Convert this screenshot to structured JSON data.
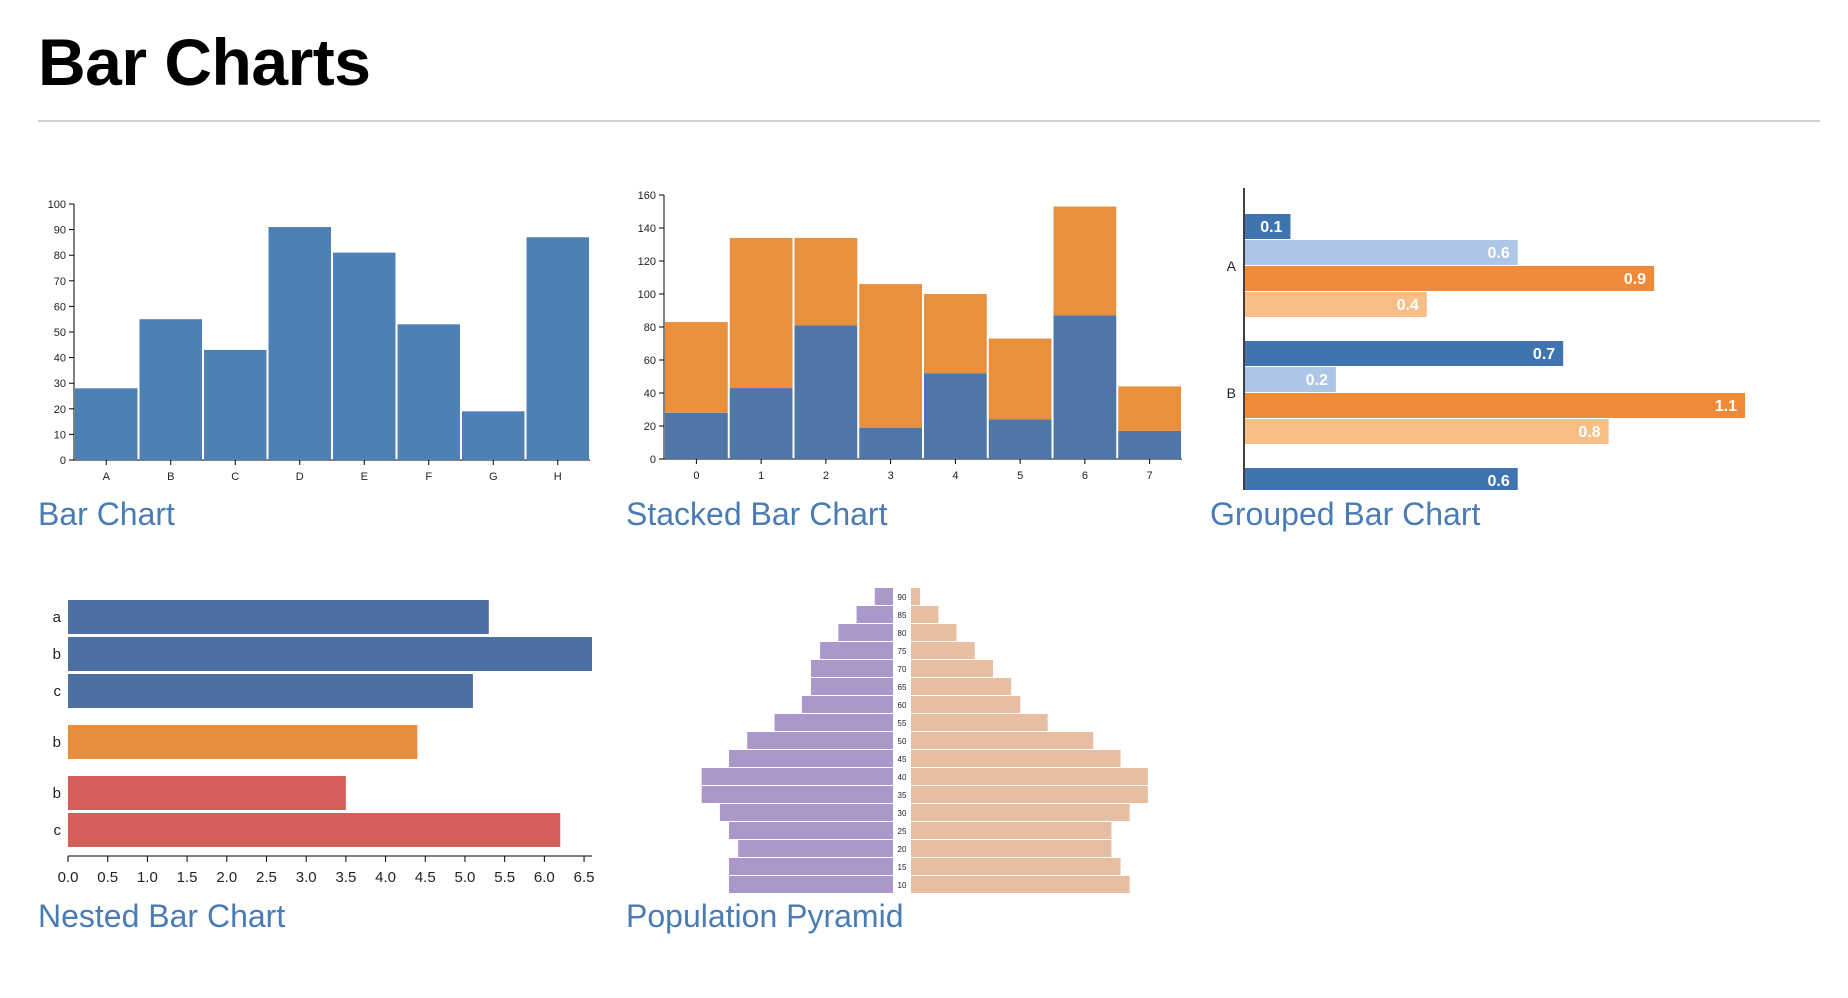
{
  "page": {
    "title": "Bar Charts"
  },
  "links": {
    "bar": "Bar Chart",
    "stacked": "Stacked Bar Chart",
    "grouped": "Grouped Bar Chart",
    "nested": "Nested Bar Chart",
    "pyramid": "Population Pyramid"
  },
  "colors": {
    "bar": "#4e7fb5",
    "stacked_bottom": "#4e77a8",
    "stacked_top": "#e8903c",
    "grouped": [
      "#3f74b0",
      "#adc6e8",
      "#ef8a38",
      "#f7bf86"
    ],
    "nested": [
      "#4e6fa2",
      "#e88d3c",
      "#d45e5a"
    ],
    "pyramid_left": "#ab98cb",
    "pyramid_right": "#e8bea3"
  },
  "chart_data": [
    {
      "id": "bar",
      "type": "bar",
      "categories": [
        "A",
        "B",
        "C",
        "D",
        "E",
        "F",
        "G",
        "H"
      ],
      "values": [
        28,
        55,
        43,
        91,
        81,
        53,
        19,
        87
      ],
      "ylim": [
        0,
        100
      ],
      "yticks": [
        0,
        10,
        20,
        30,
        40,
        50,
        60,
        70,
        80,
        90,
        100
      ]
    },
    {
      "id": "stacked",
      "type": "bar",
      "stacked": true,
      "categories": [
        "0",
        "1",
        "2",
        "3",
        "4",
        "5",
        "6",
        "7"
      ],
      "series": [
        {
          "values": [
            28,
            43,
            81,
            19,
            52,
            24,
            87,
            17
          ]
        },
        {
          "values": [
            55,
            91,
            53,
            87,
            48,
            49,
            66,
            27
          ]
        }
      ],
      "ylim": [
        0,
        160
      ],
      "yticks": [
        0,
        20,
        40,
        60,
        80,
        100,
        120,
        140,
        160
      ]
    },
    {
      "id": "grouped",
      "type": "bar",
      "orientation": "horizontal",
      "groups": [
        {
          "label": "A",
          "values": [
            "0.1",
            "0.6",
            "0.9",
            "0.4"
          ]
        },
        {
          "label": "B",
          "values": [
            "0.7",
            "0.2",
            "1.1",
            "0.8"
          ]
        },
        {
          "label": "",
          "values": [
            "0.6"
          ]
        }
      ],
      "xlim": [
        0,
        1.1
      ]
    },
    {
      "id": "nested",
      "type": "bar",
      "orientation": "horizontal",
      "groups": [
        {
          "bars": [
            {
              "label": "a",
              "value": 5.3
            },
            {
              "label": "b",
              "value": 6.6
            },
            {
              "label": "c",
              "value": 5.1
            }
          ]
        },
        {
          "bars": [
            {
              "label": "b",
              "value": 4.4
            }
          ]
        },
        {
          "bars": [
            {
              "label": "b",
              "value": 3.5
            },
            {
              "label": "c",
              "value": 6.2
            }
          ]
        }
      ],
      "xticks": [
        "0.0",
        "0.5",
        "1.0",
        "1.5",
        "2.0",
        "2.5",
        "3.0",
        "3.5",
        "4.0",
        "4.5",
        "5.0",
        "5.5",
        "6.0",
        "6.5"
      ],
      "xlim": [
        0,
        6.6
      ]
    },
    {
      "id": "pyramid",
      "type": "bar",
      "orientation": "horizontal",
      "age_labels": [
        "90",
        "85",
        "80",
        "75",
        "70",
        "65",
        "60",
        "55",
        "50",
        "45",
        "40",
        "35",
        "30",
        "25",
        "20",
        "15",
        "10"
      ],
      "left_values": [
        2,
        4,
        6,
        8,
        9,
        9,
        10,
        13,
        16,
        18,
        21,
        21,
        19,
        18,
        17,
        18,
        18
      ],
      "right_values": [
        1,
        3,
        5,
        7,
        9,
        11,
        12,
        15,
        20,
        23,
        26,
        26,
        24,
        22,
        22,
        23,
        24
      ],
      "xmax": 27
    }
  ]
}
